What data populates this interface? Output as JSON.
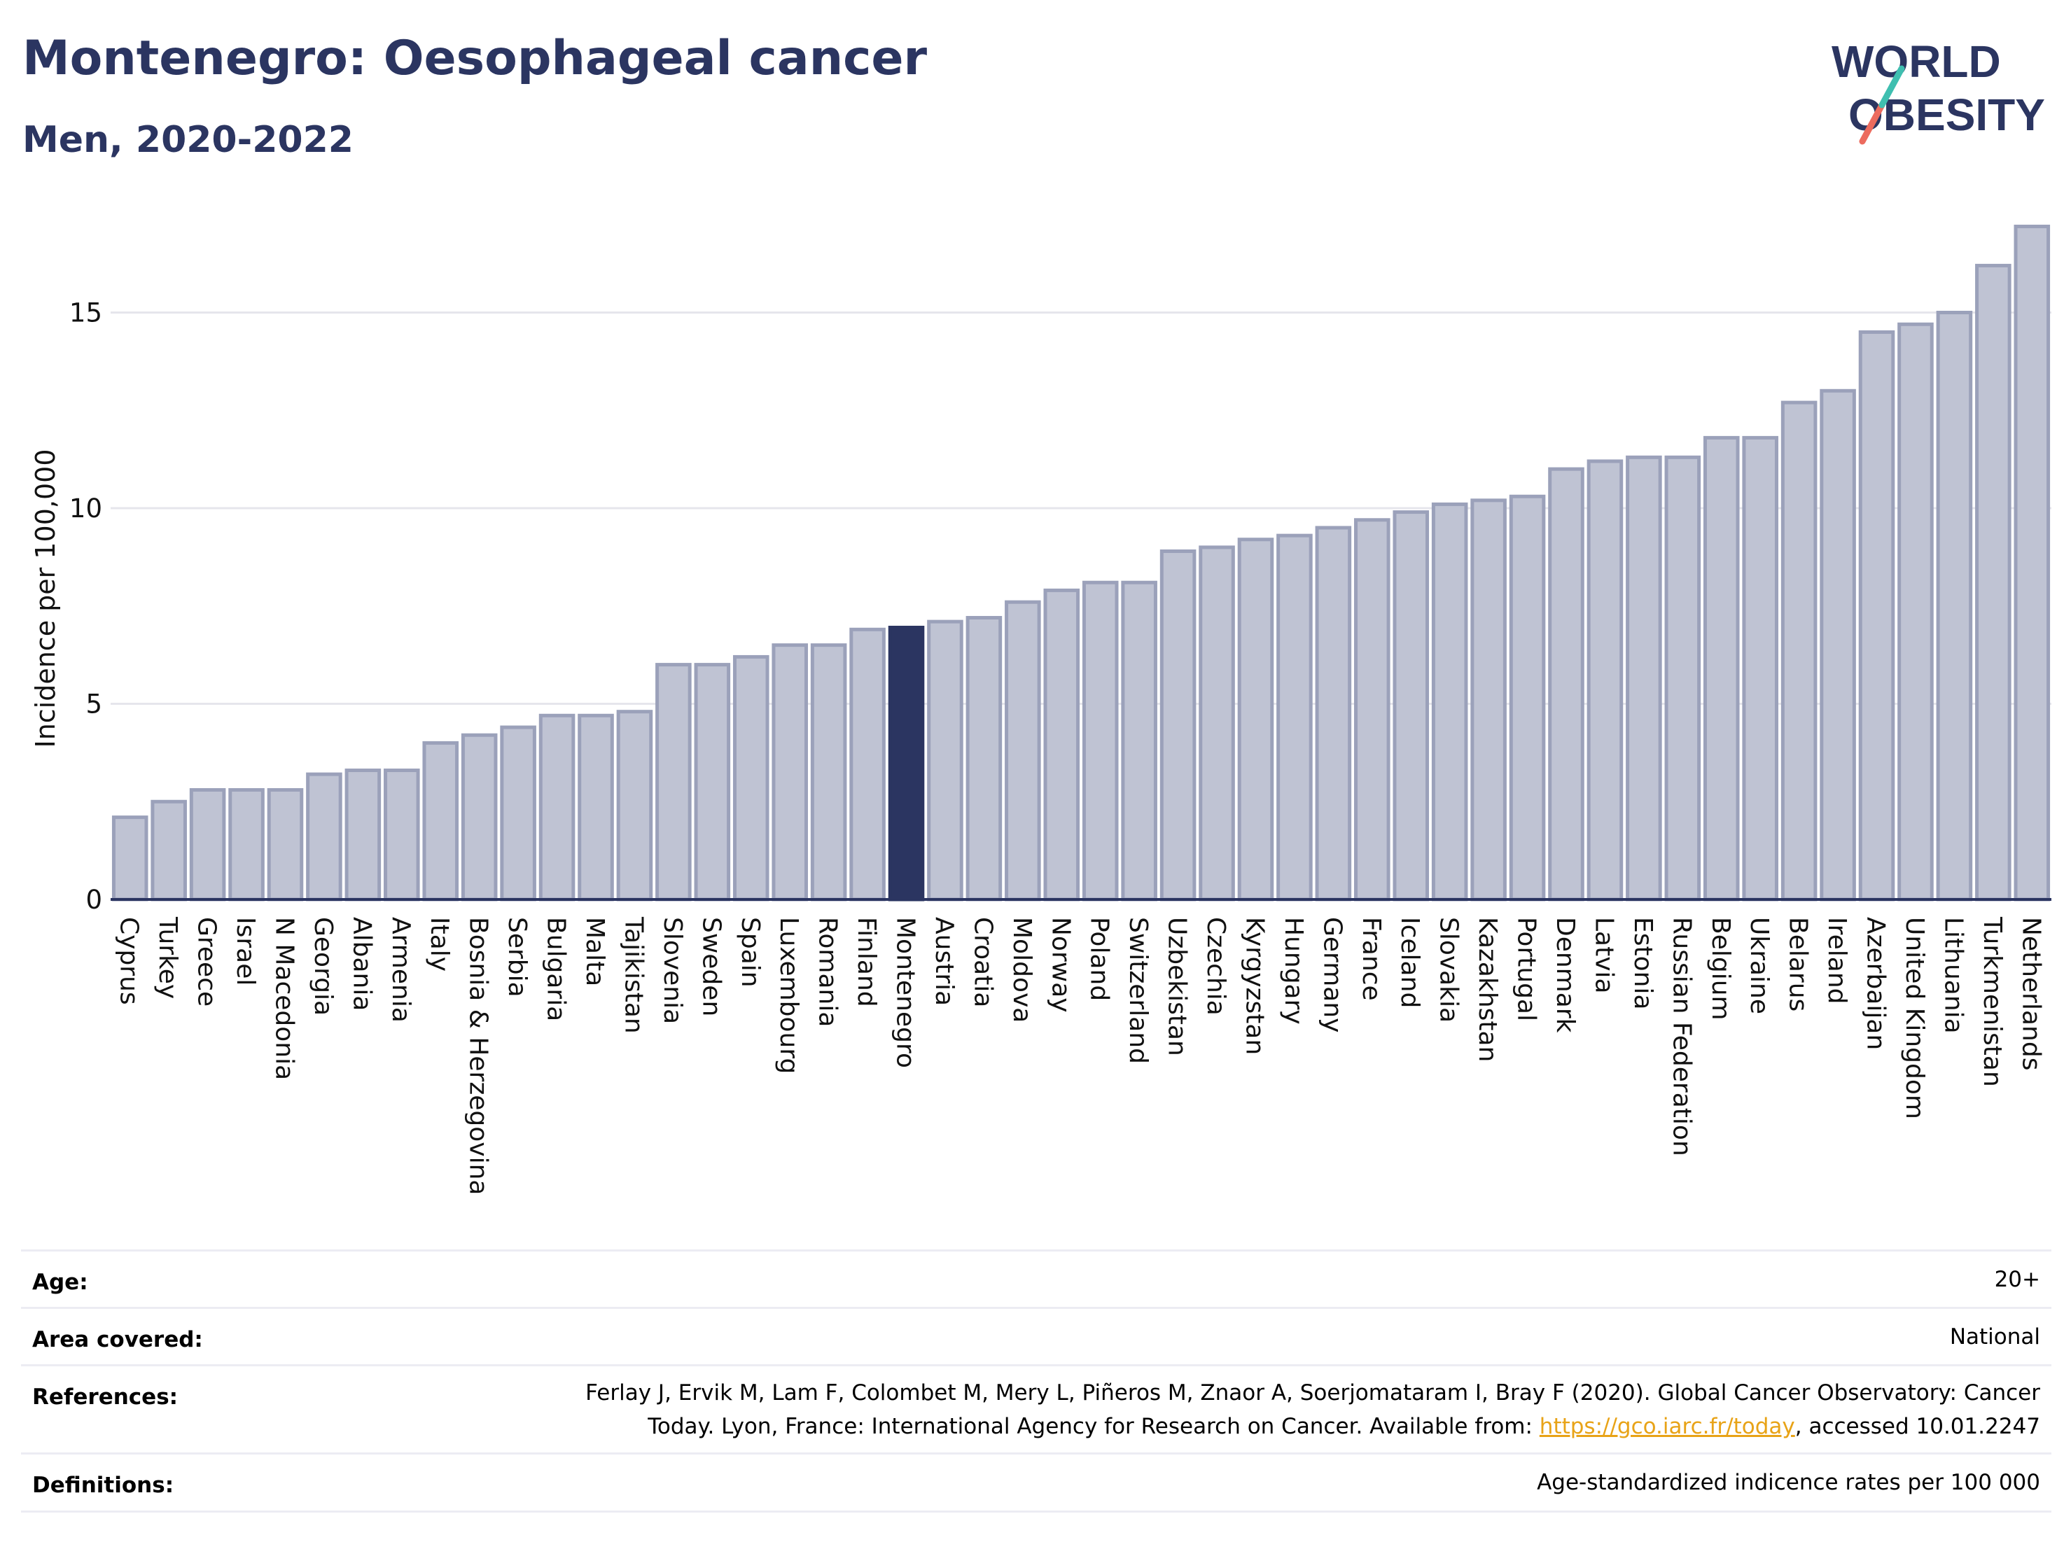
{
  "header": {
    "title": "Montenegro: Oesophageal cancer",
    "subtitle": "Men, 2020-2022"
  },
  "logo": {
    "line1": "WORLD",
    "line2": "OBESITY",
    "colors": {
      "text": "#2b3561",
      "slash_top": "#3fbfb0",
      "slash_bottom": "#ec6b5e"
    }
  },
  "chart_data": {
    "type": "bar",
    "title": "",
    "xlabel": "",
    "ylabel": "Incidence per 100,000",
    "ylim": [
      0,
      17.3
    ],
    "yticks": [
      0,
      5,
      10,
      15
    ],
    "grid": true,
    "highlight": "Montenegro",
    "colors": {
      "bar": "#bfc3d3",
      "bar_edge": "#9ba1ba",
      "highlight": "#2b3561",
      "grid": "#e6e6ec",
      "axis": "#2b3561"
    },
    "categories": [
      "Cyprus",
      "Turkey",
      "Greece",
      "Israel",
      "N Macedonia",
      "Georgia",
      "Albania",
      "Armenia",
      "Italy",
      "Bosnia & Herzegovina",
      "Serbia",
      "Bulgaria",
      "Malta",
      "Tajikistan",
      "Slovenia",
      "Sweden",
      "Spain",
      "Luxembourg",
      "Romania",
      "Finland",
      "Montenegro",
      "Austria",
      "Croatia",
      "Moldova",
      "Norway",
      "Poland",
      "Switzerland",
      "Uzbekistan",
      "Czechia",
      "Kyrgyzstan",
      "Hungary",
      "Germany",
      "France",
      "Iceland",
      "Slovakia",
      "Kazakhstan",
      "Portugal",
      "Denmark",
      "Latvia",
      "Estonia",
      "Russian Federation",
      "Belgium",
      "Ukraine",
      "Belarus",
      "Ireland",
      "Azerbaijan",
      "United Kingdom",
      "Lithuania",
      "Turkmenistan",
      "Netherlands"
    ],
    "values": [
      2.1,
      2.5,
      2.8,
      2.8,
      2.8,
      3.2,
      3.3,
      3.3,
      4.0,
      4.2,
      4.4,
      4.7,
      4.7,
      4.8,
      6.0,
      6.0,
      6.2,
      6.5,
      6.5,
      6.9,
      6.95,
      7.1,
      7.2,
      7.6,
      7.9,
      8.1,
      8.1,
      8.9,
      9.0,
      9.2,
      9.3,
      9.5,
      9.7,
      9.9,
      10.1,
      10.2,
      10.3,
      11.0,
      11.2,
      11.3,
      11.3,
      11.8,
      11.8,
      12.7,
      13.0,
      14.5,
      14.7,
      15.0,
      16.2,
      17.2
    ]
  },
  "meta": {
    "age_label": "Age:",
    "age_value": "20+",
    "area_label": "Area covered:",
    "area_value": "National",
    "references_label": "References:",
    "references_line1": "Ferlay J, Ervik M, Lam F, Colombet M, Mery L, Piñeros M, Znaor A, Soerjomataram I, Bray F (2020). Global Cancer Observatory: Cancer",
    "references_line2_pre": "Today. Lyon, France: International Agency for Research on Cancer. Available from: ",
    "references_link": "https://gco.iarc.fr/today",
    "references_line2_post": ", accessed 10.01.2247",
    "definitions_label": "Definitions:",
    "definitions_value": "Age-standardized indicence rates per 100 000"
  }
}
